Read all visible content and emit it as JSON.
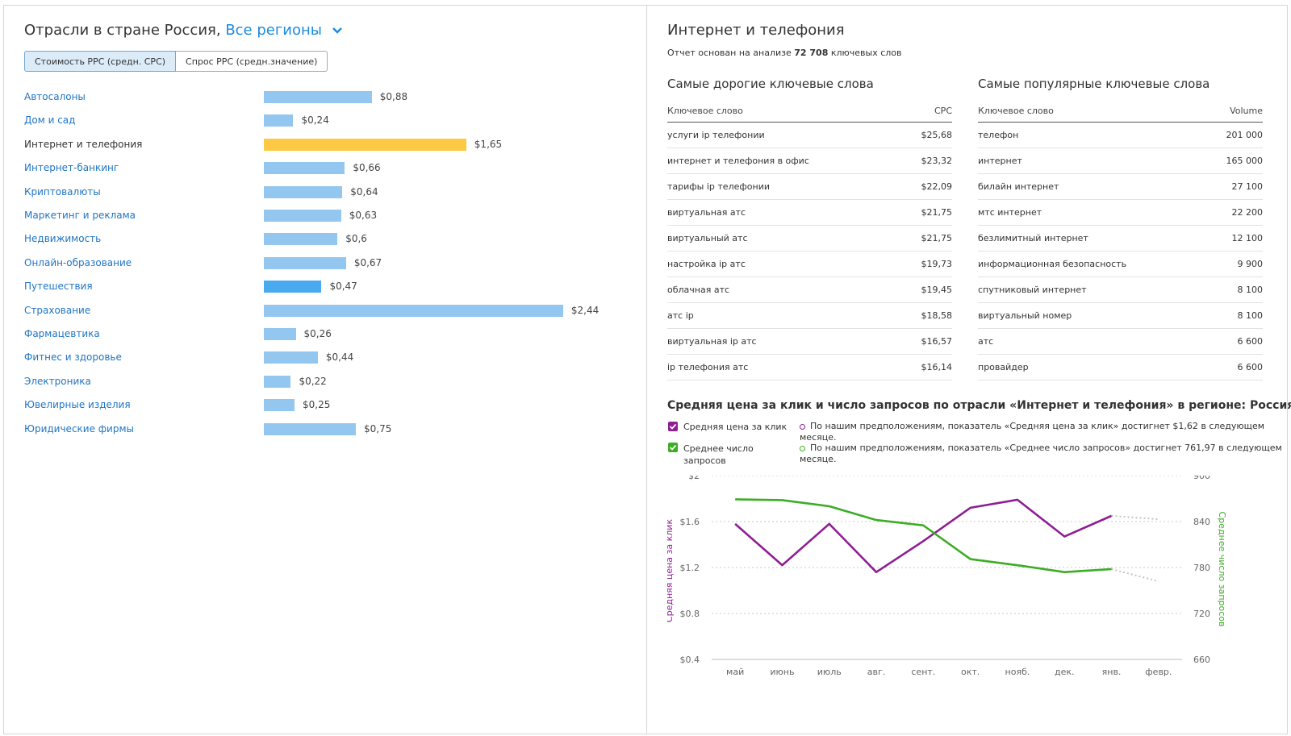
{
  "left": {
    "title": "Отрасли в стране Россия,",
    "region_label": "Все регионы",
    "tabs": [
      "Стоимость PPC (средн. CPC)",
      "Спрос PPC (средн.значение)"
    ],
    "bars": [
      {
        "label": "Автосалоны",
        "value": 0.88,
        "value_label": "$0,88",
        "selected": false
      },
      {
        "label": "Дом и сад",
        "value": 0.24,
        "value_label": "$0,24",
        "selected": false
      },
      {
        "label": "Интернет и телефония",
        "value": 1.65,
        "value_label": "$1,65",
        "selected": true
      },
      {
        "label": "Интернет-банкинг",
        "value": 0.66,
        "value_label": "$0,66",
        "selected": false
      },
      {
        "label": "Криптовалюты",
        "value": 0.64,
        "value_label": "$0,64",
        "selected": false
      },
      {
        "label": "Маркетинг и реклама",
        "value": 0.63,
        "value_label": "$0,63",
        "selected": false
      },
      {
        "label": "Недвижимость",
        "value": 0.6,
        "value_label": "$0,6",
        "selected": false
      },
      {
        "label": "Онлайн-образование",
        "value": 0.67,
        "value_label": "$0,67",
        "selected": false
      },
      {
        "label": "Путешествия",
        "value": 0.47,
        "value_label": "$0,47",
        "selected": false,
        "highlight": true
      },
      {
        "label": "Страхование",
        "value": 2.44,
        "value_label": "$2,44",
        "selected": false
      },
      {
        "label": "Фармацевтика",
        "value": 0.26,
        "value_label": "$0,26",
        "selected": false
      },
      {
        "label": "Фитнес и здоровье",
        "value": 0.44,
        "value_label": "$0,44",
        "selected": false
      },
      {
        "label": "Электроника",
        "value": 0.22,
        "value_label": "$0,22",
        "selected": false
      },
      {
        "label": "Ювелирные изделия",
        "value": 0.25,
        "value_label": "$0,25",
        "selected": false
      },
      {
        "label": "Юридические фирмы",
        "value": 0.75,
        "value_label": "$0,75",
        "selected": false
      }
    ]
  },
  "right": {
    "title": "Интернет и телефония",
    "subtitle_pre": "Отчет основан на анализе ",
    "subtitle_count": "72 708",
    "subtitle_post": " ключевых слов",
    "expensive": {
      "title": "Самые дорогие ключевые слова",
      "col_keyword": "Ключевое слово",
      "col_value": "CPC",
      "rows": [
        {
          "k": "услуги ip телефонии",
          "v": "$25,68"
        },
        {
          "k": "интернет и телефония в офис",
          "v": "$23,32"
        },
        {
          "k": "тарифы ip телефонии",
          "v": "$22,09"
        },
        {
          "k": "виртуальная атс",
          "v": "$21,75"
        },
        {
          "k": "виртуальный атс",
          "v": "$21,75"
        },
        {
          "k": "настройка ip атс",
          "v": "$19,73"
        },
        {
          "k": "облачная атс",
          "v": "$19,45"
        },
        {
          "k": "атс ip",
          "v": "$18,58"
        },
        {
          "k": "виртуальная ip атс",
          "v": "$16,57"
        },
        {
          "k": "ip телефония атс",
          "v": "$16,14"
        }
      ]
    },
    "popular": {
      "title": "Самые популярные ключевые слова",
      "col_keyword": "Ключевое слово",
      "col_value": "Volume",
      "rows": [
        {
          "k": "телефон",
          "v": "201 000"
        },
        {
          "k": "интернет",
          "v": "165 000"
        },
        {
          "k": "билайн интернет",
          "v": "27 100"
        },
        {
          "k": "мтс интернет",
          "v": "22 200"
        },
        {
          "k": "безлимитный интернет",
          "v": "12 100"
        },
        {
          "k": "информационная безопасность",
          "v": "9 900"
        },
        {
          "k": "спутниковый интернет",
          "v": "8 100"
        },
        {
          "k": "виртуальный номер",
          "v": "8 100"
        },
        {
          "k": "атс",
          "v": "6 600"
        },
        {
          "k": "провайдер",
          "v": "6 600"
        }
      ]
    },
    "chart_title": "Средняя цена за клик и число запросов по отрасли «Интернет и телефония» в регионе: Россия",
    "legend": {
      "cpc_label": "Средняя цена за клик",
      "volume_label_1": "Среднее число",
      "volume_label_2": "запросов",
      "cpc_note_1": "По нашим предположениям, показатель «Средняя цена за клик» достигнет $1,62 в следующем",
      "cpc_note_2": "месяце.",
      "volume_note_1": "По нашим предположениям, показатель «Среднее число запросов» достигнет 761,97 в следующем",
      "volume_note_2": "месяце."
    }
  },
  "colors": {
    "cpc": "#8e1f93",
    "volume": "#3cad25",
    "bar": "#93c7f0",
    "bar_selected": "#fdc843",
    "bar_highlight": "#4aaaf0",
    "link": "#1f75c4"
  },
  "chart_data": [
    {
      "type": "bar",
      "categories": [
        "Автосалоны",
        "Дом и сад",
        "Интернет и телефония",
        "Интернет-банкинг",
        "Криптовалюты",
        "Маркетинг и реклама",
        "Недвижимость",
        "Онлайн-образование",
        "Путешествия",
        "Страхование",
        "Фармацевтика",
        "Фитнес и здоровье",
        "Электроника",
        "Ювелирные изделия",
        "Юридические фирмы"
      ],
      "values": [
        0.88,
        0.24,
        1.65,
        0.66,
        0.64,
        0.63,
        0.6,
        0.67,
        0.47,
        2.44,
        0.26,
        0.44,
        0.22,
        0.25,
        0.75
      ],
      "orientation": "horizontal"
    },
    {
      "type": "line",
      "title": "Средняя цена за клик и число запросов по отрасли «Интернет и телефония» в регионе: Россия",
      "categories": [
        "май",
        "июнь",
        "июль",
        "авг.",
        "сент.",
        "окт.",
        "нояб.",
        "дек.",
        "янв.",
        "февр."
      ],
      "ylabel_left": "Средняя цена за клик",
      "ylabel_right": "Среднее число запросов",
      "ylim_left": [
        0.4,
        2
      ],
      "ylim_right": [
        660,
        900
      ],
      "yticks_left": [
        "$0.4",
        "$0.8",
        "$1.2",
        "$1.6",
        "$2"
      ],
      "yticks_right": [
        "660",
        "720",
        "780",
        "840",
        "900"
      ],
      "series": [
        {
          "name": "Средняя цена за клик",
          "axis": "left",
          "values": [
            1.58,
            1.22,
            1.58,
            1.16,
            1.43,
            1.72,
            1.79,
            1.47,
            1.65,
            null
          ],
          "forecast": [
            null,
            null,
            null,
            null,
            null,
            null,
            null,
            null,
            1.65,
            1.62
          ]
        },
        {
          "name": "Среднее число запросов",
          "axis": "right",
          "values": [
            869,
            868,
            860,
            842,
            835,
            791,
            783,
            774,
            778,
            null
          ],
          "forecast": [
            null,
            null,
            null,
            null,
            null,
            null,
            null,
            null,
            778,
            761.97
          ]
        }
      ]
    }
  ]
}
